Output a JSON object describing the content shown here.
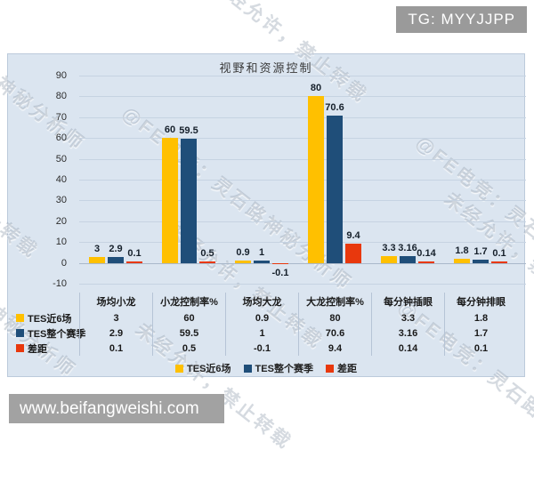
{
  "badge": {
    "text": "TG: MYYJJPP"
  },
  "watermarks": {
    "line1": "@FE电竞：灵石路神秘分析师",
    "line2": "未经允许，禁止转载"
  },
  "footer": {
    "url": "www.beifangweishi.com"
  },
  "chart_data": {
    "type": "bar",
    "title": "视野和资源控制",
    "categories": [
      "场均小龙",
      "小龙控制率%",
      "场均大龙",
      "大龙控制率%",
      "每分钟插眼",
      "每分钟排眼"
    ],
    "series": [
      {
        "name": "TES近6场",
        "color": "#FFC000",
        "values": [
          3,
          60,
          0.9,
          80,
          3.3,
          1.8
        ]
      },
      {
        "name": "TES整个赛季",
        "color": "#1F4E79",
        "values": [
          2.9,
          59.5,
          1,
          70.6,
          3.16,
          1.7
        ]
      },
      {
        "name": "差距",
        "color": "#E8380D",
        "values": [
          0.1,
          0.5,
          -0.1,
          9.4,
          0.14,
          0.1
        ]
      }
    ],
    "ylim": [
      -10,
      90
    ],
    "yticks": [
      90,
      80,
      70,
      60,
      50,
      40,
      30,
      20,
      10,
      0,
      -10
    ],
    "grid": true,
    "legend_position": "bottom",
    "data_table": true,
    "colors": {
      "panel_bg": "#dbe5f0",
      "gridline": "#c6d3e2",
      "table_border": "#b6c4d6",
      "label_text": "#16202b"
    }
  }
}
